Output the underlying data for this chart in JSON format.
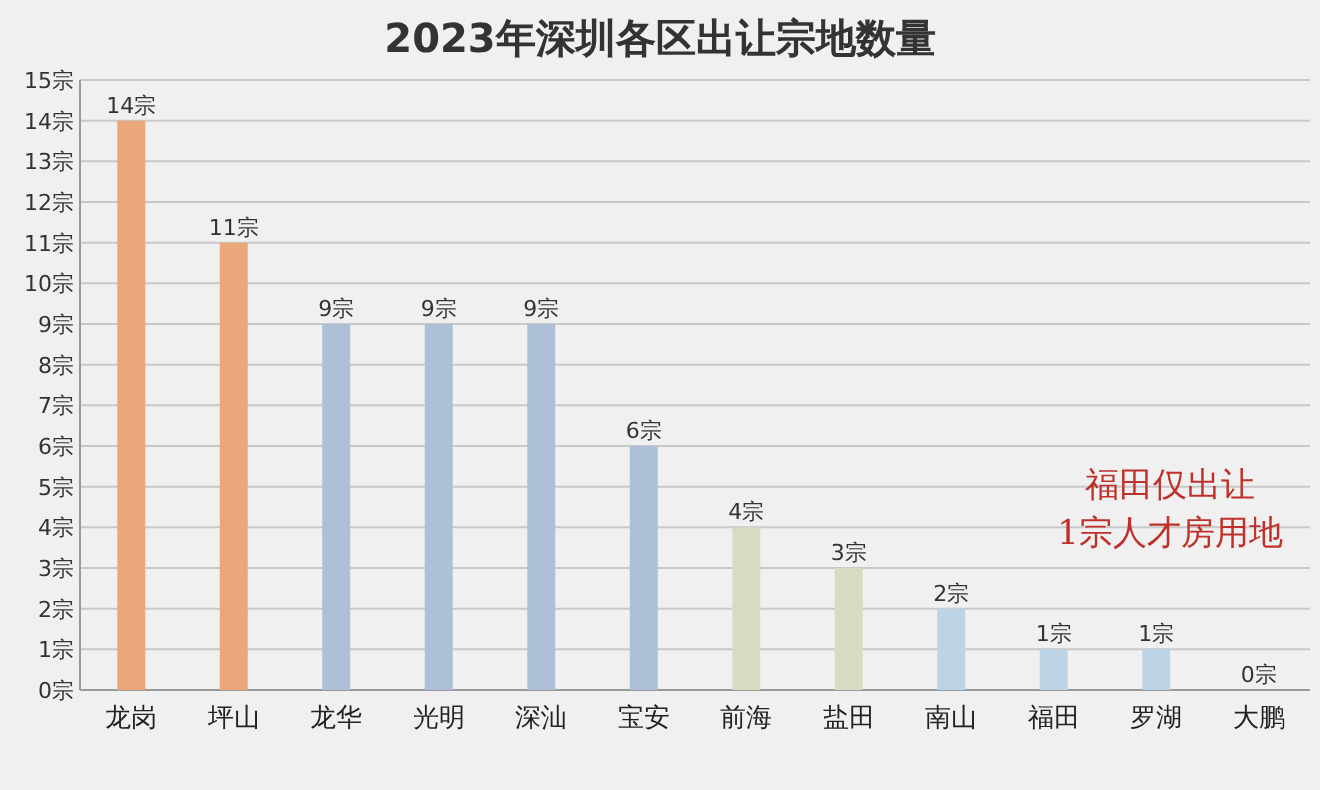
{
  "chart_data": {
    "type": "bar",
    "title": "2023年深圳各区出让宗地数量",
    "categories": [
      "龙岗",
      "坪山",
      "龙华",
      "光明",
      "深汕",
      "宝安",
      "前海",
      "盐田",
      "南山",
      "福田",
      "罗湖",
      "大鹏"
    ],
    "values": [
      14,
      11,
      9,
      9,
      9,
      6,
      4,
      3,
      2,
      1,
      1,
      0
    ],
    "colors": [
      "#eaa77a",
      "#eaa77a",
      "#aebfd8",
      "#aebfd8",
      "#aebfd8",
      "#aebfd8",
      "#d6dcc2",
      "#d6dcc2",
      "#bcd4e6",
      "#bcd4e6",
      "#bcd4e6",
      "#bcd4e6"
    ],
    "value_labels": [
      "14宗",
      "11宗",
      "9宗",
      "9宗",
      "9宗",
      "6宗",
      "4宗",
      "3宗",
      "2宗",
      "1宗",
      "1宗",
      "0宗"
    ],
    "ylim": [
      0,
      15
    ],
    "yticks": [
      {
        "value": 0,
        "label": "0宗"
      },
      {
        "value": 1,
        "label": "1宗"
      },
      {
        "value": 2,
        "label": "2宗"
      },
      {
        "value": 3,
        "label": "3宗"
      },
      {
        "value": 4,
        "label": "4宗"
      },
      {
        "value": 5,
        "label": "5宗"
      },
      {
        "value": 6,
        "label": "6宗"
      },
      {
        "value": 7,
        "label": "7宗"
      },
      {
        "value": 8,
        "label": "8宗"
      },
      {
        "value": 9,
        "label": "9宗"
      },
      {
        "value": 10,
        "label": "10宗"
      },
      {
        "value": 11,
        "label": "11宗"
      },
      {
        "value": 12,
        "label": "12宗"
      },
      {
        "value": 13,
        "label": "13宗"
      },
      {
        "value": 14,
        "label": "14宗"
      },
      {
        "value": 15,
        "label": "15宗"
      }
    ],
    "grid": "y",
    "annotations": [
      "福田仅出让",
      "1宗人才房用地"
    ]
  }
}
